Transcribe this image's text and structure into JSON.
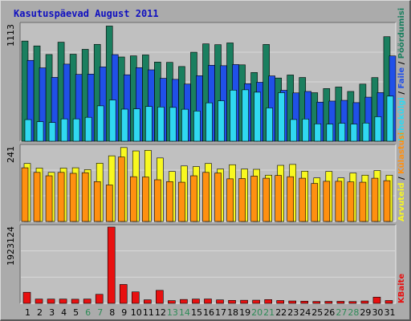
{
  "title": "Kasutuspäevad August 2011",
  "colors": {
    "background": "#ababab",
    "panel_bg": "#c0c0c0",
    "grid": "#d8d8d8",
    "hits": "#1a7f5f",
    "files": "#2050e8",
    "pages": "#30d8f0",
    "visits": "#f8f820",
    "sites": "#ff9010",
    "kbytes": "#e81010",
    "title": "#1010c0",
    "weekend": "#2e8b57"
  },
  "chart_data": [
    {
      "type": "bar",
      "panel": "top",
      "scale_label": "1113",
      "ylim": [
        0,
        1113
      ],
      "categories": [
        "1",
        "2",
        "3",
        "4",
        "5",
        "6",
        "7",
        "8",
        "9",
        "10",
        "11",
        "12",
        "13",
        "14",
        "15",
        "16",
        "17",
        "18",
        "19",
        "20",
        "21",
        "22",
        "23",
        "24",
        "25",
        "26",
        "27",
        "28",
        "29",
        "30",
        "31"
      ],
      "series": [
        {
          "name": "Pöördumisi",
          "color": "#1a7f5f",
          "values": [
            968,
            921,
            838,
            957,
            841,
            888,
            936,
            1113,
            814,
            825,
            834,
            765,
            762,
            722,
            860,
            941,
            933,
            950,
            738,
            664,
            935,
            611,
            640,
            616,
            469,
            509,
            524,
            481,
            552,
            615,
            1010
          ]
        },
        {
          "name": "Faile",
          "color": "#2050e8",
          "values": [
            781,
            709,
            617,
            745,
            646,
            649,
            718,
            837,
            642,
            711,
            690,
            608,
            598,
            552,
            633,
            734,
            730,
            741,
            556,
            570,
            631,
            492,
            467,
            481,
            378,
            388,
            395,
            373,
            426,
            470,
            824
          ]
        },
        {
          "name": "Lehekülgi",
          "color": "#30d8f0",
          "values": [
            209,
            189,
            181,
            216,
            216,
            231,
            342,
            399,
            310,
            313,
            336,
            331,
            327,
            309,
            292,
            371,
            391,
            494,
            497,
            474,
            322,
            469,
            210,
            215,
            168,
            166,
            174,
            166,
            176,
            237,
            436
          ]
        }
      ]
    },
    {
      "type": "bar",
      "panel": "middle",
      "scale_label": "241",
      "ylim": [
        0,
        241
      ],
      "categories": [
        "1",
        "2",
        "3",
        "4",
        "5",
        "6",
        "7",
        "8",
        "9",
        "10",
        "11",
        "12",
        "13",
        "14",
        "15",
        "16",
        "17",
        "18",
        "19",
        "20",
        "21",
        "22",
        "23",
        "24",
        "25",
        "26",
        "27",
        "28",
        "29",
        "30",
        "31"
      ],
      "series": [
        {
          "name": "Külastusi",
          "color": "#f8f820",
          "values": [
            189,
            174,
            160,
            174,
            175,
            169,
            190,
            214,
            241,
            230,
            232,
            207,
            163,
            181,
            179,
            189,
            171,
            185,
            171,
            170,
            151,
            183,
            186,
            164,
            142,
            163,
            142,
            158,
            151,
            166,
            151
          ]
        },
        {
          "name": "Arvuteid",
          "color": "#ff9010",
          "values": [
            175,
            160,
            149,
            160,
            157,
            159,
            130,
            119,
            210,
            146,
            145,
            136,
            130,
            128,
            149,
            160,
            158,
            139,
            140,
            148,
            141,
            150,
            146,
            141,
            124,
            131,
            131,
            129,
            128,
            141,
            133
          ]
        }
      ]
    },
    {
      "type": "bar",
      "panel": "bottom",
      "scale_label": "1923124",
      "ylim": [
        0,
        1923124
      ],
      "categories": [
        "1",
        "2",
        "3",
        "4",
        "5",
        "6",
        "7",
        "8",
        "9",
        "10",
        "11",
        "12",
        "13",
        "14",
        "15",
        "16",
        "17",
        "18",
        "19",
        "20",
        "21",
        "22",
        "23",
        "24",
        "25",
        "26",
        "27",
        "28",
        "29",
        "30",
        "31"
      ],
      "series": [
        {
          "name": "KBaite",
          "color": "#e81010",
          "values": [
            279542,
            107890,
            107890,
            107890,
            103811,
            107890,
            227420,
            1923124,
            475813,
            289000,
            89000,
            327000,
            69000,
            98000,
            108000,
            110000,
            87000,
            75000,
            78000,
            80000,
            95000,
            72000,
            60000,
            55000,
            48000,
            50000,
            51000,
            46000,
            60000,
            157000,
            71000
          ]
        }
      ]
    }
  ],
  "x_axis": {
    "labels": [
      "1",
      "2",
      "3",
      "4",
      "5",
      "6",
      "7",
      "8",
      "9",
      "10",
      "11",
      "12",
      "13",
      "14",
      "15",
      "16",
      "17",
      "18",
      "19",
      "20",
      "21",
      "22",
      "23",
      "24",
      "25",
      "26",
      "27",
      "28",
      "29",
      "30",
      "31"
    ],
    "weekend_days": [
      "6",
      "7",
      "13",
      "14",
      "20",
      "21",
      "27",
      "28"
    ]
  },
  "right_labels": {
    "top": [
      "Pöördumisi",
      "Faile",
      "Lehekülgi"
    ],
    "middle": [
      "Külastusi",
      "Arvuteid"
    ],
    "bottom": [
      "KBaite"
    ],
    "separator": " / "
  }
}
